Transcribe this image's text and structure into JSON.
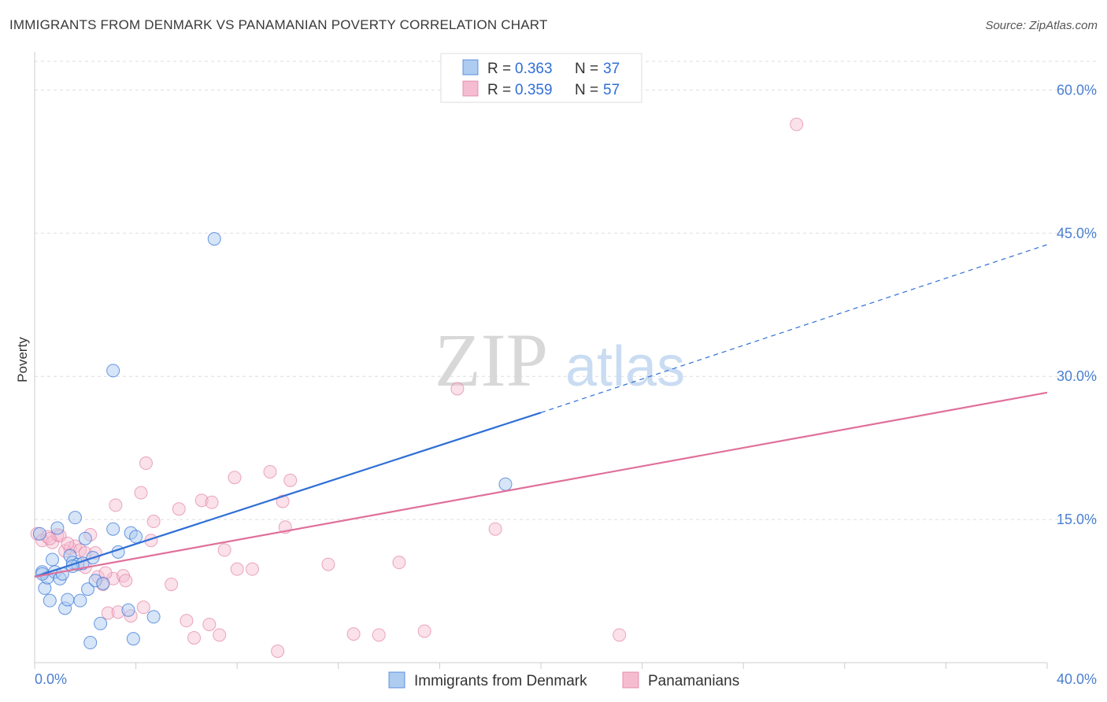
{
  "title": "IMMIGRANTS FROM DENMARK VS PANAMANIAN POVERTY CORRELATION CHART",
  "source": "Source: ZipAtlas.com",
  "watermark": {
    "zip": "ZIP",
    "atlas": "atlas"
  },
  "colors": {
    "blue": "#2f6fd6",
    "blue_fill": "#aecbf0",
    "pink": "#e0709a",
    "pink_fill": "#f5bcd0",
    "grid": "#dddddd",
    "tick": "#4a7fd1"
  },
  "legend": {
    "items": [
      {
        "r_label": "R =",
        "r_value": "0.363",
        "n_label": "N =",
        "n_value": "37"
      },
      {
        "r_label": "R =",
        "r_value": "0.359",
        "n_label": "N =",
        "n_value": "57"
      }
    ]
  },
  "bottom_legend": [
    "Immigrants from Denmark",
    "Panamanians"
  ],
  "chart_data": {
    "type": "scatter",
    "title": "IMMIGRANTS FROM DENMARK VS PANAMANIAN POVERTY CORRELATION CHART",
    "xlabel": "",
    "ylabel": "Poverty",
    "xlim": [
      0,
      40
    ],
    "ylim": [
      0,
      63
    ],
    "x_tick_labels": [
      "0.0%",
      "40.0%"
    ],
    "y_ticks": [
      15,
      30,
      45,
      60
    ],
    "y_tick_labels": [
      "15.0%",
      "30.0%",
      "45.0%",
      "60.0%"
    ],
    "grid": true,
    "legend_position": "top-center",
    "series": [
      {
        "name": "Immigrants from Denmark",
        "color": "#2f6fd6",
        "r": 0.363,
        "n": 37,
        "trend": {
          "x0": 0,
          "y0": 9.0,
          "x1_solid": 20,
          "y1_solid": 26.2,
          "x1_dashed": 40,
          "y1_dashed": 43.8
        },
        "points": [
          [
            0.2,
            13.5
          ],
          [
            0.3,
            9.5
          ],
          [
            0.4,
            7.8
          ],
          [
            0.5,
            8.9
          ],
          [
            0.6,
            6.5
          ],
          [
            0.7,
            10.8
          ],
          [
            0.8,
            9.5
          ],
          [
            0.9,
            14.1
          ],
          [
            1.0,
            8.8
          ],
          [
            1.1,
            9.3
          ],
          [
            1.2,
            5.7
          ],
          [
            1.3,
            6.6
          ],
          [
            1.4,
            11.2
          ],
          [
            1.5,
            10.5
          ],
          [
            1.6,
            15.2
          ],
          [
            1.7,
            10.3
          ],
          [
            1.8,
            6.5
          ],
          [
            1.9,
            10.4
          ],
          [
            2.0,
            13.0
          ],
          [
            2.1,
            7.7
          ],
          [
            2.2,
            2.1
          ],
          [
            2.3,
            11.0
          ],
          [
            2.4,
            8.6
          ],
          [
            2.6,
            4.1
          ],
          [
            2.7,
            8.3
          ],
          [
            3.1,
            30.6
          ],
          [
            3.1,
            14.0
          ],
          [
            3.3,
            11.6
          ],
          [
            3.7,
            5.5
          ],
          [
            3.8,
            13.6
          ],
          [
            3.9,
            2.5
          ],
          [
            4.0,
            13.2
          ],
          [
            4.7,
            4.8
          ],
          [
            7.1,
            44.4
          ],
          [
            18.6,
            18.7
          ],
          [
            0.3,
            9.3
          ],
          [
            1.5,
            10.1
          ]
        ]
      },
      {
        "name": "Panamanians",
        "color": "#e0709a",
        "r": 0.359,
        "n": 57,
        "trend": {
          "x0": 0,
          "y0": 9.0,
          "x1": 40,
          "y1": 28.3
        },
        "points": [
          [
            0.1,
            13.5
          ],
          [
            0.3,
            12.8
          ],
          [
            0.5,
            13.2
          ],
          [
            0.7,
            12.6
          ],
          [
            0.9,
            13.4
          ],
          [
            1.0,
            13.3
          ],
          [
            1.2,
            11.7
          ],
          [
            1.4,
            12.0
          ],
          [
            1.6,
            12.2
          ],
          [
            1.8,
            11.8
          ],
          [
            2.0,
            11.5
          ],
          [
            2.2,
            13.4
          ],
          [
            2.4,
            11.5
          ],
          [
            2.5,
            9.0
          ],
          [
            2.7,
            8.2
          ],
          [
            2.9,
            5.2
          ],
          [
            3.1,
            8.8
          ],
          [
            3.2,
            16.5
          ],
          [
            3.3,
            5.3
          ],
          [
            3.5,
            9.1
          ],
          [
            3.6,
            8.6
          ],
          [
            3.8,
            4.9
          ],
          [
            4.2,
            17.8
          ],
          [
            4.4,
            20.9
          ],
          [
            4.3,
            5.8
          ],
          [
            4.6,
            12.8
          ],
          [
            4.7,
            14.8
          ],
          [
            5.4,
            8.2
          ],
          [
            5.7,
            16.1
          ],
          [
            6.0,
            4.4
          ],
          [
            6.3,
            2.6
          ],
          [
            6.6,
            17.0
          ],
          [
            6.9,
            4.0
          ],
          [
            7.0,
            16.8
          ],
          [
            7.3,
            2.9
          ],
          [
            7.5,
            11.8
          ],
          [
            7.9,
            19.4
          ],
          [
            8.0,
            9.8
          ],
          [
            8.6,
            9.8
          ],
          [
            9.3,
            20.0
          ],
          [
            9.6,
            1.2
          ],
          [
            9.8,
            16.9
          ],
          [
            9.9,
            14.2
          ],
          [
            10.1,
            19.1
          ],
          [
            11.6,
            10.3
          ],
          [
            12.6,
            3.0
          ],
          [
            13.6,
            2.9
          ],
          [
            14.4,
            10.5
          ],
          [
            15.4,
            3.3
          ],
          [
            16.7,
            28.7
          ],
          [
            18.2,
            14.0
          ],
          [
            23.1,
            2.9
          ],
          [
            30.1,
            56.4
          ],
          [
            2.0,
            10.0
          ],
          [
            1.3,
            12.5
          ],
          [
            0.6,
            13.0
          ],
          [
            2.8,
            9.4
          ]
        ]
      }
    ]
  }
}
